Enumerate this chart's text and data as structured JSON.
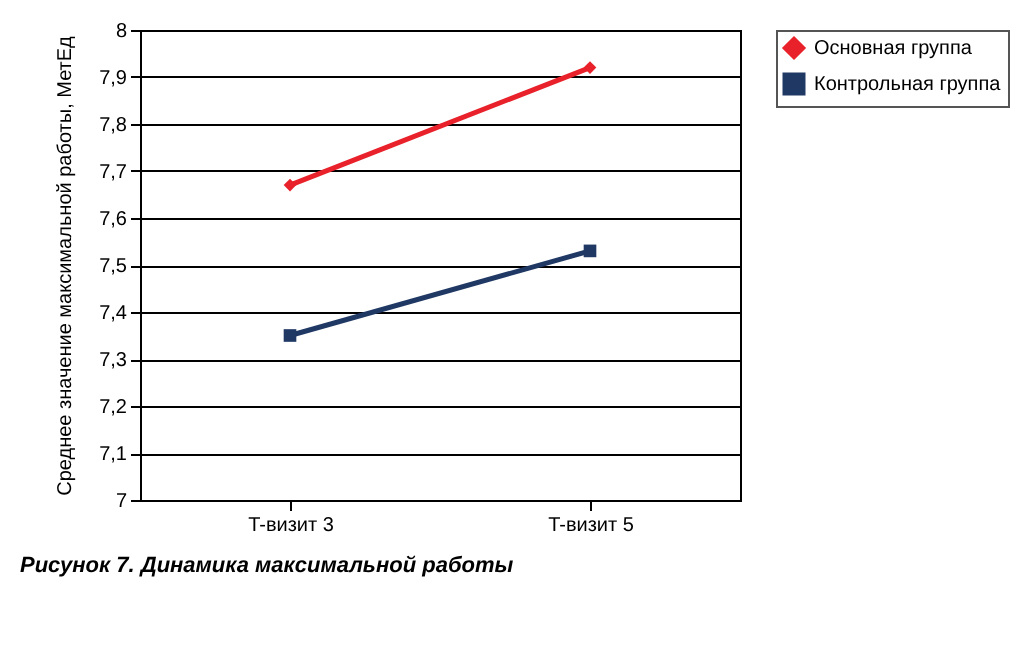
{
  "chart_data": {
    "type": "line",
    "ylabel": "Среднее значение максимальной работы, МетЕд",
    "categories": [
      "T-визит 3",
      "T-визит 5"
    ],
    "series": [
      {
        "name": "Основная группа",
        "color": "#e8212a",
        "marker": "diamond",
        "values": [
          7.67,
          7.92
        ]
      },
      {
        "name": "Контрольная группа",
        "color": "#1f3864",
        "marker": "square",
        "values": [
          7.35,
          7.53
        ]
      }
    ],
    "ylim": [
      7,
      8
    ],
    "yticks": [
      {
        "value": 7,
        "label": "7"
      },
      {
        "value": 7.1,
        "label": "7,1"
      },
      {
        "value": 7.2,
        "label": "7,2"
      },
      {
        "value": 7.3,
        "label": "7,3"
      },
      {
        "value": 7.4,
        "label": "7,4"
      },
      {
        "value": 7.5,
        "label": "7,5"
      },
      {
        "value": 7.6,
        "label": "7,6"
      },
      {
        "value": 7.7,
        "label": "7,7"
      },
      {
        "value": 7.8,
        "label": "7,8"
      },
      {
        "value": 7.9,
        "label": "7,9"
      },
      {
        "value": 8,
        "label": "8"
      }
    ],
    "grid": "y",
    "legend": "right",
    "line_style": "solid",
    "annotations": [
      "Рисунок 7. Динамика максимальной работы"
    ]
  }
}
